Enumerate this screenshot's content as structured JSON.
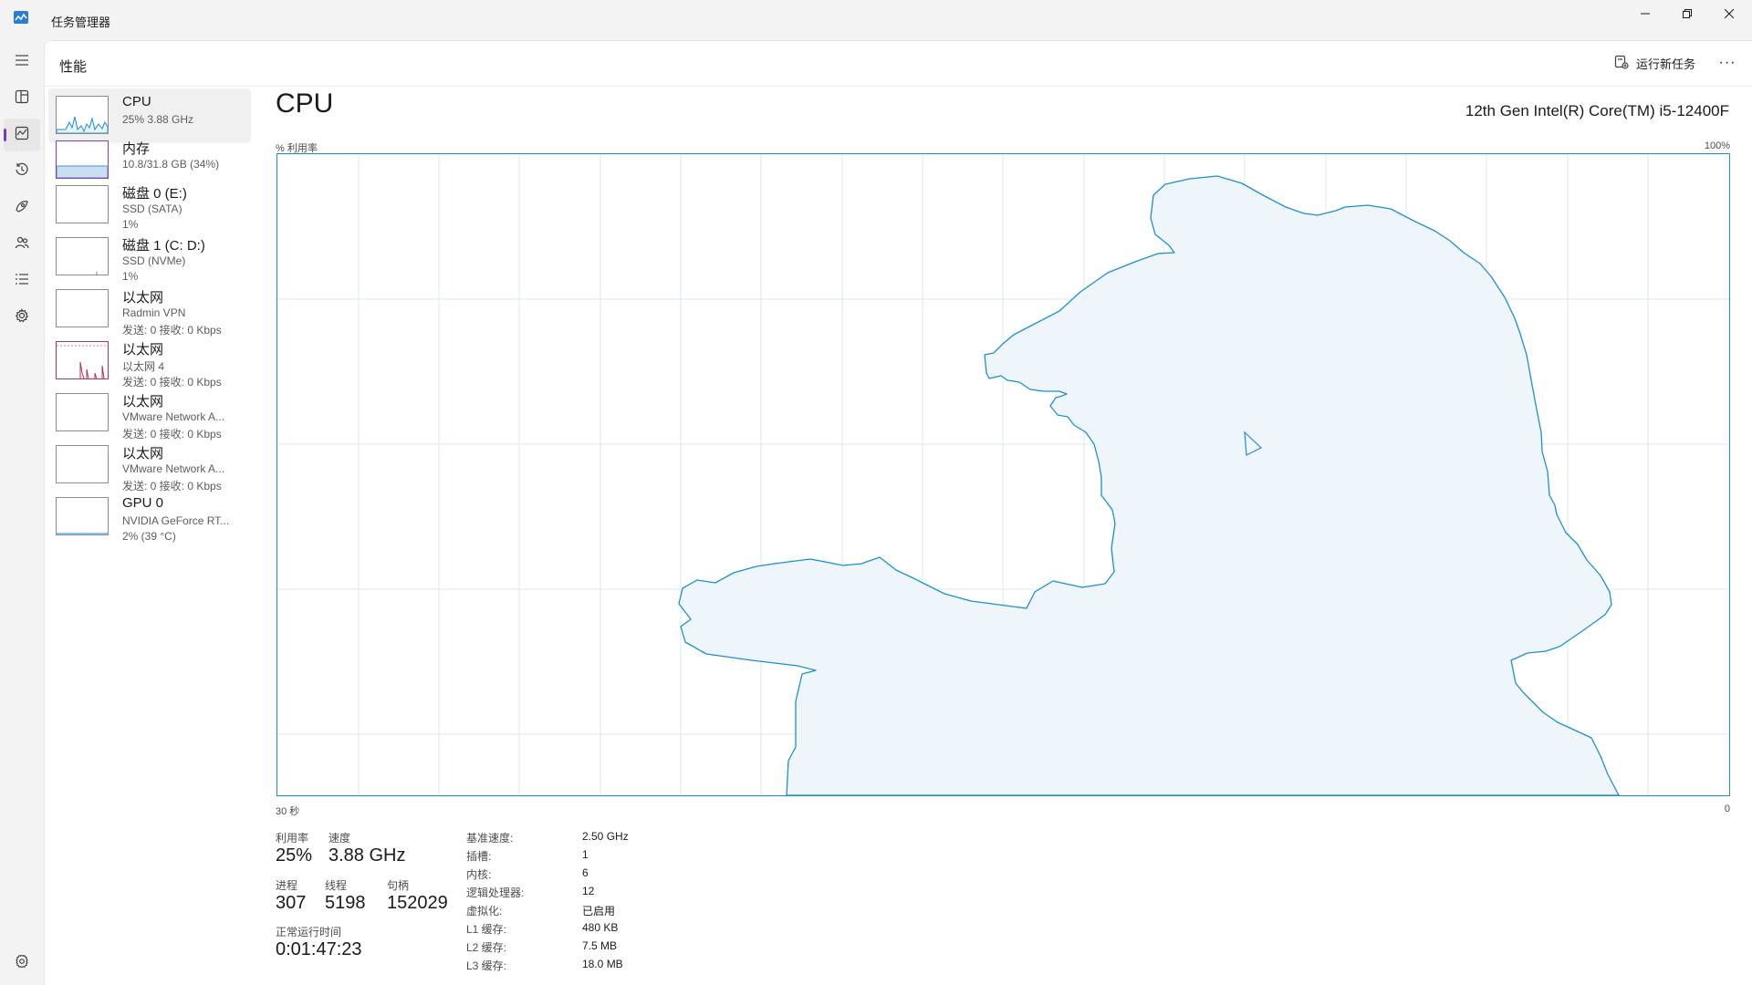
{
  "window": {
    "title": "任务管理器"
  },
  "nav": {
    "items": [
      {
        "name": "menu-icon"
      },
      {
        "name": "processes-icon"
      },
      {
        "name": "performance-icon"
      },
      {
        "name": "app-history-icon"
      },
      {
        "name": "startup-icon"
      },
      {
        "name": "users-icon"
      },
      {
        "name": "details-icon"
      },
      {
        "name": "services-icon"
      }
    ],
    "settings": {
      "name": "settings-icon"
    }
  },
  "header": {
    "title": "性能",
    "run_task_label": "运行新任务",
    "more_label": "···"
  },
  "devices": [
    {
      "name": "CPU",
      "line2": "25% 3.88 GHz",
      "line3": "",
      "color": "#1e8ed4"
    },
    {
      "name": "内存",
      "line2": "10.8/31.8 GB (34%)",
      "line3": "",
      "color": "#8b3bb8"
    },
    {
      "name": "磁盘 0 (E:)",
      "line2": "SSD (SATA)",
      "line3": "1%",
      "color": "#4da60c"
    },
    {
      "name": "磁盘 1 (C: D:)",
      "line2": "SSD (NVMe)",
      "line3": "1%",
      "color": "#4da60c"
    },
    {
      "name": "以太网",
      "line2": "Radmin VPN",
      "line3": "发送: 0 接收: 0 Kbps",
      "color": "#a7365b"
    },
    {
      "name": "以太网",
      "line2": "以太网 4",
      "line3": "发送: 0 接收: 0 Kbps",
      "color": "#a7365b"
    },
    {
      "name": "以太网",
      "line2": "VMware Network A...",
      "line3": "发送: 0 接收: 0 Kbps",
      "color": "#a7365b"
    },
    {
      "name": "以太网",
      "line2": "VMware Network A...",
      "line3": "发送: 0 接收: 0 Kbps",
      "color": "#a7365b"
    },
    {
      "name": "GPU 0",
      "line2": "NVIDIA GeForce RT...",
      "line3": "2% (39 °C)",
      "color": "#1e8ed4"
    }
  ],
  "resource": {
    "title": "CPU",
    "model": "12th Gen Intel(R) Core(TM) i5-12400F",
    "axis_label": "% 利用率",
    "axis_max": "100%",
    "x_left": "30 秒",
    "x_right": "0",
    "graph_color": "#1e8ed4"
  },
  "stats": {
    "utilization_label": "利用率",
    "utilization": "25%",
    "speed_label": "速度",
    "speed": "3.88 GHz",
    "processes_label": "进程",
    "processes": "307",
    "threads_label": "线程",
    "threads": "5198",
    "handles_label": "句柄",
    "handles": "152029",
    "uptime_label": "正常运行时间",
    "uptime": "0:01:47:23"
  },
  "specs": [
    {
      "key": "基准速度:",
      "value": "2.50 GHz"
    },
    {
      "key": "插槽:",
      "value": "1"
    },
    {
      "key": "内核:",
      "value": "6"
    },
    {
      "key": "逻辑处理器:",
      "value": "12"
    },
    {
      "key": "虚拟化:",
      "value": "已启用"
    },
    {
      "key": "L1 缓存:",
      "value": "480 KB"
    },
    {
      "key": "L2 缓存:",
      "value": "7.5 MB"
    },
    {
      "key": "L3 缓存:",
      "value": "18.0 MB"
    }
  ]
}
